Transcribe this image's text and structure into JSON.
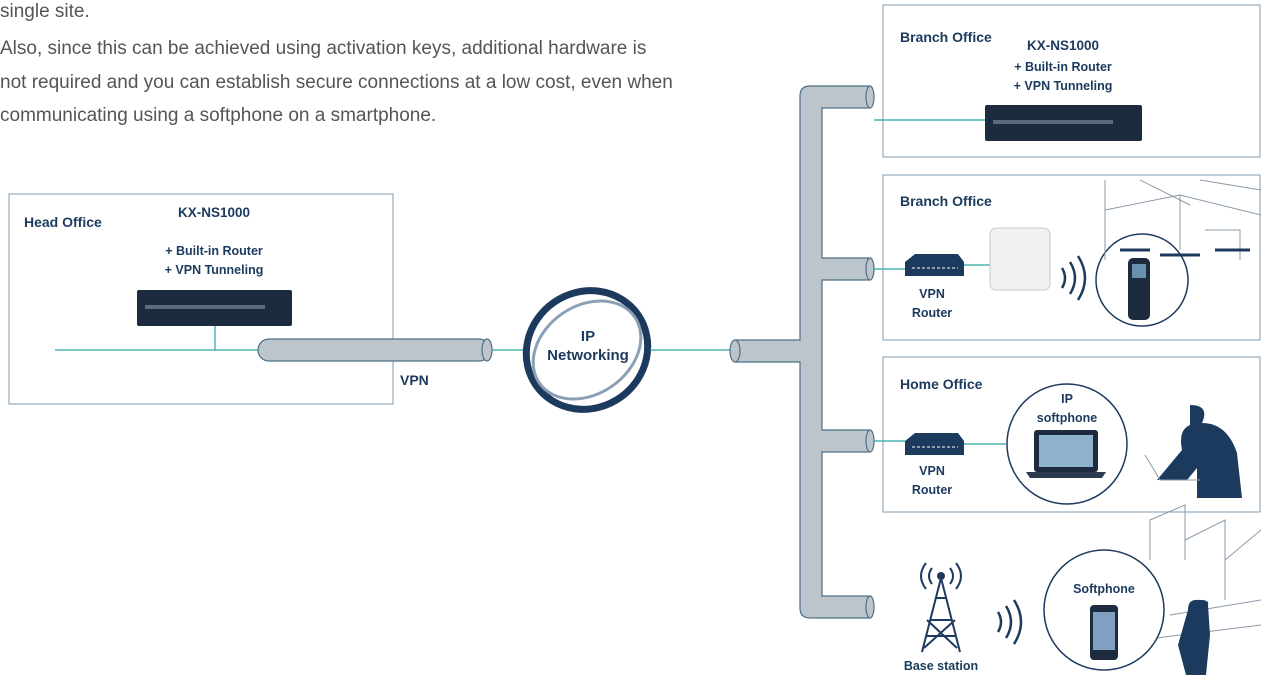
{
  "paragraph": {
    "lines": [
      "single site.",
      "Also, since this can be achieved using activation keys, additional hardware is",
      "not required and you can establish secure connections at a low cost, even when",
      "communicating using a softphone on a smartphone."
    ]
  },
  "head_office": {
    "title": "Head Office",
    "model": "KX-NS1000",
    "features": [
      "+ Built-in Router",
      "+ VPN Tunneling"
    ]
  },
  "link": {
    "label": "VPN"
  },
  "network": {
    "lines": [
      "IP",
      "Networking"
    ]
  },
  "sites": [
    {
      "title": "Branch Office",
      "model": "KX-NS1000",
      "features": [
        "+ Built-in Router",
        "+ VPN Tunneling"
      ]
    },
    {
      "title": "Branch  Office",
      "router": [
        "VPN",
        "Router"
      ]
    },
    {
      "title": "Home Office",
      "router": [
        "VPN",
        "Router"
      ],
      "device": [
        "IP",
        "softphone"
      ]
    },
    {
      "device": [
        "Softphone"
      ],
      "station": "Base station"
    }
  ]
}
